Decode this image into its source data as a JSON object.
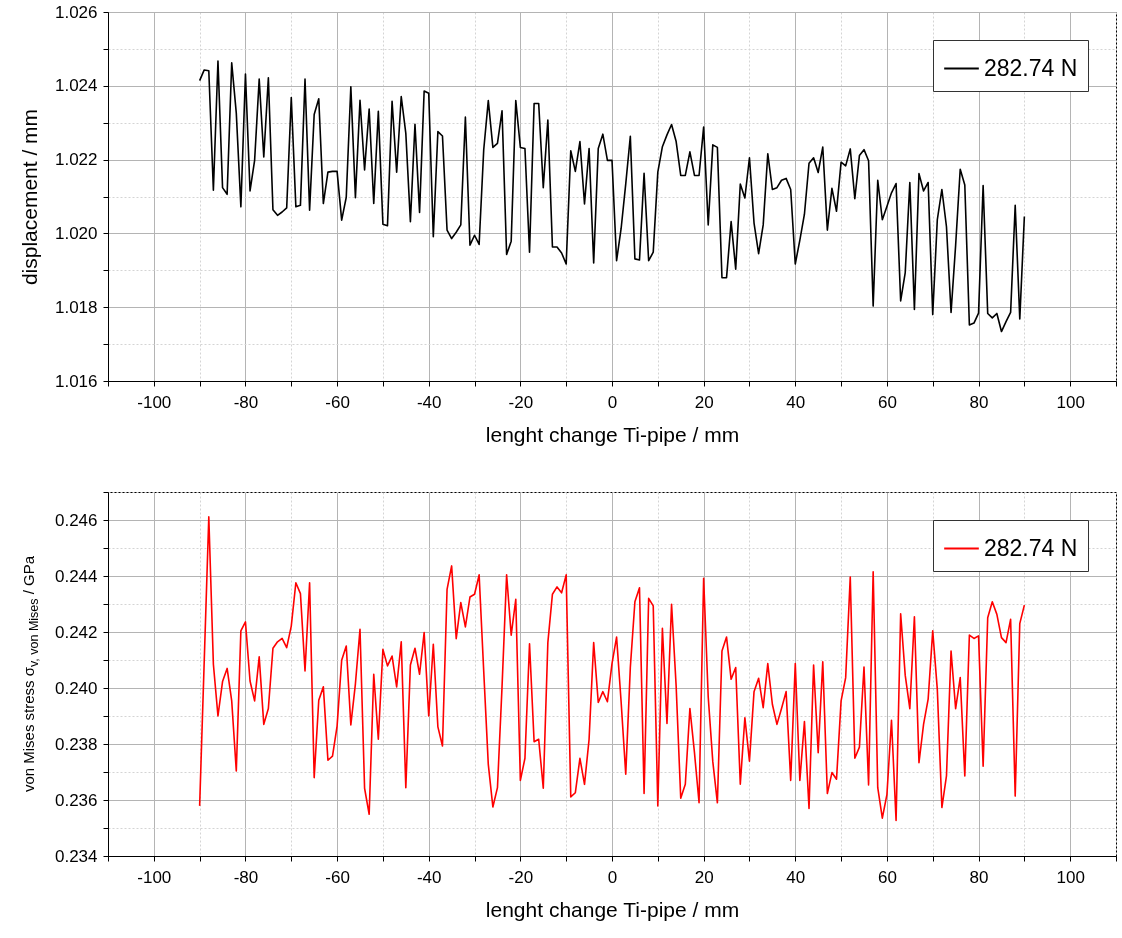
{
  "chart_data": [
    {
      "type": "line",
      "xlabel": "lenght change Ti-pipe / mm",
      "ylabel": "displacement / mm",
      "x": [
        -90,
        -89,
        -88,
        -87,
        -86,
        -85,
        -84,
        -83,
        -82,
        -81,
        -80,
        -79,
        -78,
        -77,
        -76,
        -75,
        -74,
        -73,
        -72,
        -71,
        -70,
        -69,
        -68,
        -67,
        -66,
        -65,
        -64,
        -63,
        -62,
        -61,
        -60,
        -59,
        -58,
        -57,
        -56,
        -55,
        -54,
        -53,
        -52,
        -51,
        -50,
        -49,
        -48,
        -47,
        -46,
        -45,
        -44,
        -43,
        -42,
        -41,
        -40,
        -39,
        -38,
        -37,
        -36,
        -35,
        -34,
        -33,
        -32,
        -31,
        -30,
        -29,
        -28,
        -27,
        -26,
        -25,
        -24,
        -23,
        -22,
        -21,
        -20,
        -19,
        -18,
        -17,
        -16,
        -15,
        -14,
        -13,
        -12,
        -11,
        -10,
        -9,
        -8,
        -7,
        -6,
        -5,
        -4,
        -3,
        -2,
        -1,
        0,
        1,
        2,
        3,
        4,
        5,
        6,
        7,
        8,
        9,
        10,
        11,
        12,
        13,
        14,
        15,
        16,
        17,
        18,
        19,
        20,
        21,
        22,
        23,
        24,
        25,
        26,
        27,
        28,
        29,
        30,
        31,
        32,
        33,
        34,
        35,
        36,
        37,
        38,
        39,
        40,
        41,
        42,
        43,
        44,
        45,
        46,
        47,
        48,
        49,
        50,
        51,
        52,
        53,
        54,
        55,
        56,
        57,
        58,
        59,
        60,
        61,
        62,
        63,
        64,
        65,
        66,
        67,
        68,
        69,
        70,
        71,
        72,
        73,
        74,
        75,
        76,
        77,
        78,
        79,
        80,
        81,
        82,
        83,
        84,
        85,
        86,
        87,
        88,
        89,
        90
      ],
      "series": [
        {
          "name": "282.74 N",
          "color": "#000000",
          "values": [
            1.02414,
            1.02443,
            1.02441,
            1.02117,
            1.02467,
            1.02124,
            1.02106,
            1.02462,
            1.02326,
            1.02072,
            1.02432,
            1.02115,
            1.02198,
            1.02418,
            1.02207,
            1.02422,
            1.02064,
            1.02049,
            1.02058,
            1.02069,
            1.02368,
            1.02072,
            1.02076,
            1.02418,
            1.02063,
            1.02322,
            1.02365,
            1.02081,
            1.02166,
            1.02168,
            1.02168,
            1.02036,
            1.02098,
            1.02397,
            1.02097,
            1.02361,
            1.02172,
            1.02337,
            1.02081,
            1.02331,
            1.02025,
            1.02021,
            1.02358,
            1.02166,
            1.02371,
            1.02271,
            1.02032,
            1.02296,
            1.02057,
            1.02386,
            1.0238,
            1.01991,
            1.02276,
            1.02264,
            1.02009,
            1.01986,
            1.02003,
            1.02023,
            1.02315,
            1.01968,
            1.01995,
            1.0197,
            1.02226,
            1.0236,
            1.02233,
            1.02244,
            1.02332,
            1.01943,
            1.01979,
            1.0236,
            1.02233,
            1.0223,
            1.01949,
            1.02352,
            1.02352,
            1.02124,
            1.02307,
            1.01963,
            1.01963,
            1.01947,
            1.01917,
            1.02224,
            1.02168,
            1.02249,
            1.0208,
            1.0223,
            1.0192,
            1.0223,
            1.02269,
            1.02198,
            1.02198,
            1.01926,
            1.02014,
            1.02134,
            1.02263,
            1.01931,
            1.01928,
            1.02163,
            1.01926,
            1.01949,
            1.02166,
            1.02235,
            1.02267,
            1.02295,
            1.02249,
            1.02157,
            1.02157,
            1.02221,
            1.02157,
            1.02157,
            1.02288,
            1.02023,
            1.0224,
            1.02233,
            1.0188,
            1.0188,
            1.02032,
            1.01903,
            1.02134,
            1.02096,
            1.02205,
            1.02028,
            1.01945,
            1.02023,
            1.02216,
            1.02119,
            1.02124,
            1.02144,
            1.02149,
            1.02119,
            1.01917,
            1.01982,
            1.02052,
            1.0219,
            1.02205,
            1.02165,
            1.02234,
            1.02009,
            1.02122,
            1.0206,
            1.02193,
            1.02183,
            1.02229,
            1.02094,
            1.02211,
            1.02227,
            1.02197,
            1.01803,
            1.02144,
            1.02037,
            1.02073,
            1.0211,
            1.02135,
            1.01817,
            1.01894,
            1.02138,
            1.01794,
            1.02162,
            1.02115,
            1.02138,
            1.0178,
            1.02037,
            1.02119,
            1.02018,
            1.01786,
            1.01968,
            1.02174,
            1.02131,
            1.01752,
            1.01757,
            1.01784,
            1.0213,
            1.01783,
            1.01771,
            1.01783,
            1.01734,
            1.01761,
            1.01786,
            1.02076,
            1.01768,
            1.02046
          ]
        }
      ],
      "xlim": [
        -110,
        110
      ],
      "xticks": [
        {
          "value": -110,
          "label": null
        },
        -100,
        {
          "value": -90,
          "label": null
        },
        -80,
        {
          "value": -70,
          "label": null
        },
        -60,
        {
          "value": -50,
          "label": null
        },
        -40,
        {
          "value": -30,
          "label": null
        },
        -20,
        {
          "value": -10,
          "label": null
        },
        0,
        {
          "value": 10,
          "label": null
        },
        20,
        {
          "value": 30,
          "label": null
        },
        40,
        {
          "value": 50,
          "label": null
        },
        60,
        {
          "value": 70,
          "label": null
        },
        80,
        {
          "value": 90,
          "label": null
        },
        100,
        {
          "value": 110,
          "label": null
        }
      ],
      "ylim": [
        1.016,
        1.026
      ],
      "yticks": [
        1.016,
        {
          "value": 1.017,
          "label": null
        },
        1.018,
        {
          "value": 1.019,
          "label": null
        },
        {
          "value": 1.02,
          "label": "1.020"
        },
        {
          "value": 1.021,
          "label": null
        },
        1.022,
        {
          "value": 1.023,
          "label": null
        },
        1.024,
        {
          "value": 1.025,
          "label": null
        },
        1.026
      ],
      "grid": true,
      "legend": "top right"
    },
    {
      "type": "line",
      "xlabel": "lenght change Ti-pipe / mm",
      "ylabel": "von Mises stress σ$_{v, von Mises}$ / GPa",
      "x": [
        -90,
        -88,
        -87,
        -86,
        -85,
        -84,
        -83,
        -82,
        -81,
        -80,
        -79,
        -78,
        -77,
        -76,
        -75,
        -74,
        -73,
        -72,
        -71,
        -70,
        -69,
        -68,
        -67,
        -66,
        -65,
        -64,
        -63,
        -62,
        -61,
        -60,
        -59,
        -58,
        -57,
        -56,
        -55,
        -54,
        -53,
        -52,
        -51,
        -50,
        -49,
        -48,
        -47,
        -46,
        -45,
        -44,
        -43,
        -42,
        -41,
        -40,
        -39,
        -38,
        -37,
        -36,
        -35,
        -34,
        -33,
        -32,
        -31,
        -30,
        -29,
        -28,
        -27,
        -26,
        -25,
        -24,
        -23,
        -22,
        -21,
        -20,
        -19,
        -18,
        -17,
        -16,
        -15,
        -14,
        -13,
        -12,
        -11,
        -10,
        -9,
        -8,
        -7,
        -6,
        -5,
        -4,
        -3,
        -2,
        -1,
        0,
        1,
        2,
        3,
        4,
        5,
        6,
        7,
        8,
        9,
        10,
        11,
        12,
        13,
        14,
        15,
        16,
        17,
        18,
        19,
        20,
        21,
        22,
        23,
        24,
        25,
        26,
        27,
        28,
        29,
        30,
        31,
        32,
        33,
        34,
        35,
        36,
        37,
        38,
        39,
        40,
        41,
        42,
        43,
        44,
        45,
        46,
        47,
        48,
        49,
        50,
        51,
        52,
        53,
        54,
        55,
        56,
        57,
        58,
        59,
        60,
        61,
        62,
        63,
        64,
        65,
        66,
        67,
        68,
        69,
        70,
        71,
        72,
        73,
        74,
        75,
        76,
        77,
        78,
        79,
        80,
        81,
        82,
        83,
        84,
        85,
        86,
        87,
        88,
        89,
        90
      ],
      "series": [
        {
          "name": "282.74 N",
          "color": "#ff0000",
          "values": [
            0.23579,
            0.24611,
            0.24085,
            0.239,
            0.24023,
            0.2407,
            0.23954,
            0.23704,
            0.24204,
            0.24236,
            0.24025,
            0.23954,
            0.24111,
            0.2387,
            0.23927,
            0.24142,
            0.24165,
            0.24177,
            0.24144,
            0.24221,
            0.24376,
            0.24337,
            0.24061,
            0.24376,
            0.2368,
            0.23956,
            0.24004,
            0.23742,
            0.23757,
            0.23864,
            0.24099,
            0.2415,
            0.23868,
            0.24015,
            0.2421,
            0.23642,
            0.23549,
            0.24049,
            0.23817,
            0.24138,
            0.24079,
            0.24114,
            0.24004,
            0.24165,
            0.23644,
            0.24082,
            0.24142,
            0.24049,
            0.24198,
            0.239,
            0.24156,
            0.23861,
            0.23793,
            0.24352,
            0.24436,
            0.24176,
            0.24305,
            0.24218,
            0.24325,
            0.24335,
            0.24404,
            0.24061,
            0.23727,
            0.23575,
            0.23644,
            0.24004,
            0.24404,
            0.24189,
            0.24317,
            0.2367,
            0.23749,
            0.24158,
            0.23808,
            0.23817,
            0.23642,
            0.24162,
            0.24335,
            0.24361,
            0.2434,
            0.24404,
            0.23611,
            0.23626,
            0.23749,
            0.23656,
            0.23817,
            0.24162,
            0.23948,
            0.23987,
            0.23951,
            0.24087,
            0.24182,
            0.23948,
            0.23692,
            0.24073,
            0.24308,
            0.24358,
            0.23623,
            0.2432,
            0.24293,
            0.23579,
            0.24213,
            0.23873,
            0.24299,
            0.24007,
            0.23606,
            0.23656,
            0.23927,
            0.23769,
            0.2359,
            0.24392,
            0.23968,
            0.23737,
            0.2359,
            0.24132,
            0.24182,
            0.24031,
            0.24073,
            0.23656,
            0.23894,
            0.23739,
            0.23987,
            0.24035,
            0.2393,
            0.24087,
            0.23942,
            0.2387,
            0.23927,
            0.23987,
            0.2367,
            0.24087,
            0.2367,
            0.2388,
            0.2357,
            0.24082,
            0.23769,
            0.24094,
            0.23623,
            0.23698,
            0.23674,
            0.23954,
            0.24037,
            0.24396,
            0.23749,
            0.23789,
            0.24075,
            0.23654,
            0.24415,
            0.23644,
            0.23535,
            0.23619,
            0.23885,
            0.23527,
            0.24265,
            0.24045,
            0.23926,
            0.24254,
            0.23733,
            0.2387,
            0.2396,
            0.24204,
            0.23995,
            0.23573,
            0.23686,
            0.24132,
            0.23926,
            0.24037,
            0.23686,
            0.24189,
            0.24177,
            0.24186,
            0.23721,
            0.24251,
            0.24308,
            0.24263,
            0.2418,
            0.24162,
            0.24245,
            0.23614,
            0.2423,
            0.24296
          ]
        }
      ],
      "xlim": [
        -110,
        110
      ],
      "xticks": [
        {
          "value": -110,
          "label": null
        },
        -100,
        {
          "value": -90,
          "label": null
        },
        -80,
        {
          "value": -70,
          "label": null
        },
        -60,
        {
          "value": -50,
          "label": null
        },
        -40,
        {
          "value": -30,
          "label": null
        },
        -20,
        {
          "value": -10,
          "label": null
        },
        0,
        {
          "value": 10,
          "label": null
        },
        20,
        {
          "value": 30,
          "label": null
        },
        40,
        {
          "value": 50,
          "label": null
        },
        60,
        {
          "value": 70,
          "label": null
        },
        80,
        {
          "value": 90,
          "label": null
        },
        100,
        {
          "value": 110,
          "label": null
        }
      ],
      "ylim": [
        0.234,
        0.247
      ],
      "yticks": [
        0.234,
        {
          "value": 0.235,
          "label": null
        },
        0.236,
        {
          "value": 0.237,
          "label": null
        },
        0.238,
        {
          "value": 0.239,
          "label": null
        },
        {
          "value": 0.24,
          "label": "0.240"
        },
        {
          "value": 0.241,
          "label": null
        },
        0.242,
        {
          "value": 0.243,
          "label": null
        },
        0.244,
        {
          "value": 0.245,
          "label": null
        },
        0.246,
        {
          "value": 0.247,
          "label": null
        }
      ],
      "grid": true,
      "legend": "top right"
    }
  ]
}
